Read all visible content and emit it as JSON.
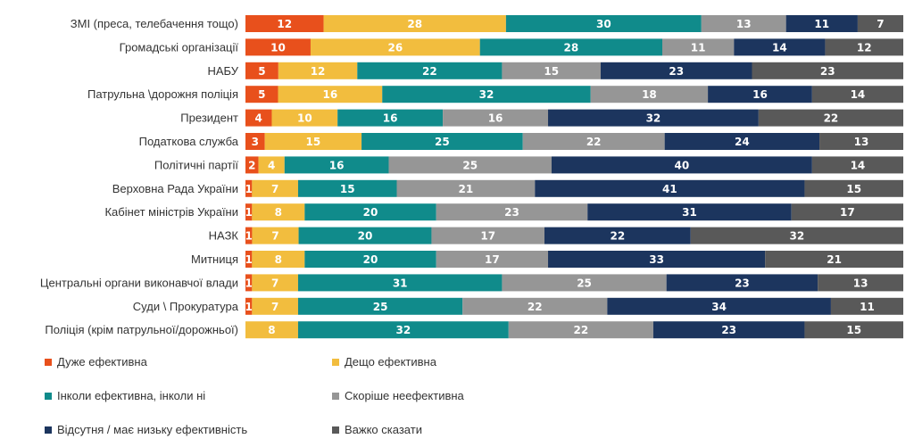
{
  "chart_data": {
    "type": "bar",
    "orientation": "horizontal",
    "stacked": true,
    "title": "",
    "xlabel": "",
    "ylabel": "",
    "categories": [
      "ЗМІ (преса, телебачення тощо)",
      "Громадські організації",
      "НАБУ",
      "Патрульна \\дорожня поліція",
      "Президент",
      "Податкова служба",
      "Політичні партії",
      "Верховна Рада України",
      "Кабінет міністрів України",
      "НАЗК",
      "Митниця",
      "Центральні органи виконавчої влади",
      "Суди \\ Прокуратура",
      "Поліція (крім патрульної/дорожньої)"
    ],
    "series": [
      {
        "name": "Дуже ефективна",
        "color": "#e8501c",
        "values": [
          12,
          10,
          5,
          5,
          4,
          3,
          2,
          1,
          1,
          1,
          1,
          1,
          1,
          0
        ]
      },
      {
        "name": "Дещо ефективна",
        "color": "#f2bd3e",
        "values": [
          28,
          26,
          12,
          16,
          10,
          15,
          4,
          7,
          8,
          7,
          8,
          7,
          7,
          8
        ]
      },
      {
        "name": "Інколи ефективна, інколи ні",
        "color": "#108b8b",
        "values": [
          30,
          28,
          22,
          32,
          16,
          25,
          16,
          15,
          20,
          20,
          20,
          31,
          25,
          32
        ]
      },
      {
        "name": "Скоріше неефективна",
        "color": "#969696",
        "values": [
          13,
          11,
          15,
          18,
          16,
          22,
          25,
          21,
          23,
          17,
          17,
          25,
          22,
          22
        ]
      },
      {
        "name": "Відсутня / має низьку ефективність",
        "color": "#1c355e",
        "values": [
          11,
          14,
          23,
          16,
          32,
          24,
          40,
          41,
          31,
          22,
          33,
          23,
          34,
          23
        ]
      },
      {
        "name": "Важко сказати",
        "color": "#595959",
        "values": [
          7,
          12,
          23,
          14,
          22,
          13,
          14,
          15,
          17,
          32,
          21,
          13,
          11,
          15
        ]
      }
    ],
    "legend_position": "bottom",
    "grid": false
  }
}
